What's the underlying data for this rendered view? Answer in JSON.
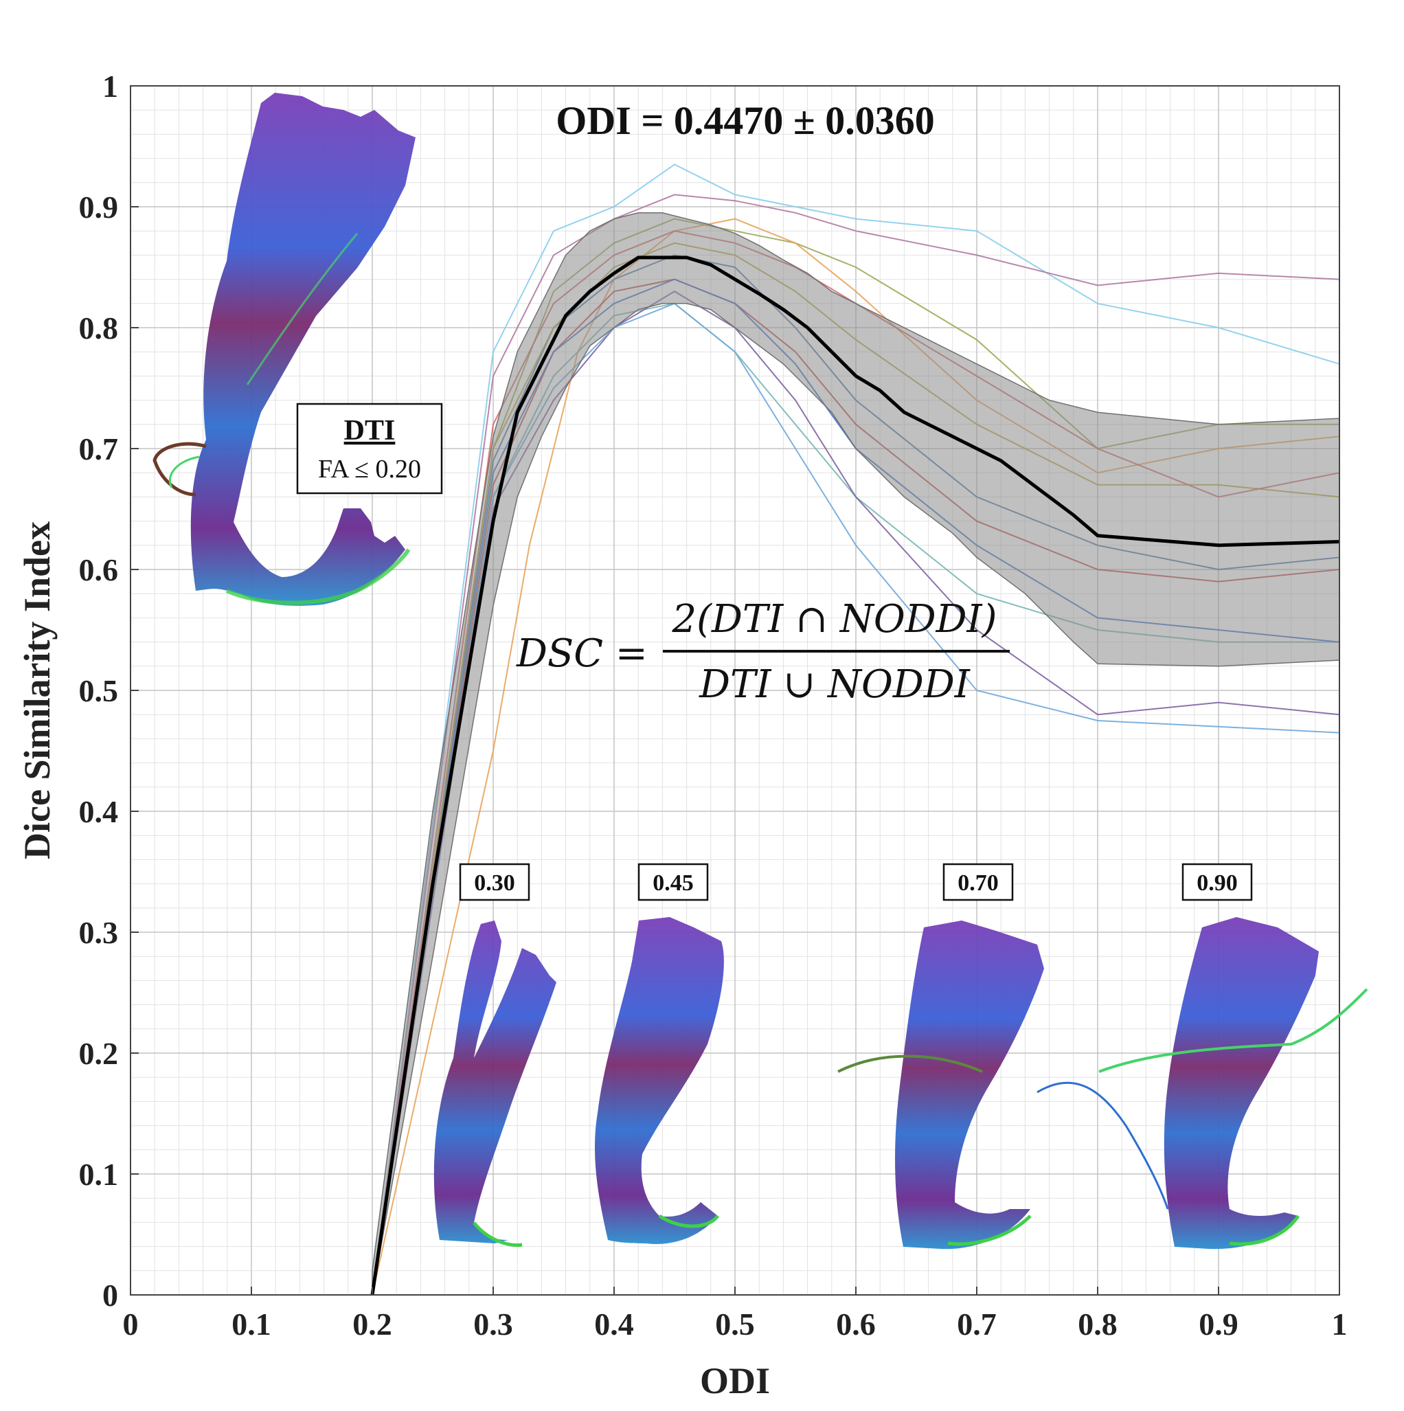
{
  "chart_data": {
    "type": "line",
    "title": "ODI = 0.4470 ± 0.0360",
    "xlabel": "ODI",
    "ylabel": "Dice Similarity Index",
    "xlim": [
      0,
      1
    ],
    "ylim": [
      0,
      1
    ],
    "xticks": [
      "0",
      "0.1",
      "0.2",
      "0.3",
      "0.4",
      "0.5",
      "0.6",
      "0.7",
      "0.8",
      "0.9",
      "1"
    ],
    "yticks": [
      "0",
      "0.1",
      "0.2",
      "0.3",
      "0.4",
      "0.5",
      "0.6",
      "0.7",
      "0.8",
      "0.9",
      "1"
    ],
    "grid": true,
    "mean_series": {
      "name": "mean",
      "color": "#000000",
      "x": [
        0.2,
        0.25,
        0.3,
        0.32,
        0.34,
        0.36,
        0.38,
        0.4,
        0.42,
        0.44,
        0.46,
        0.48,
        0.5,
        0.52,
        0.54,
        0.56,
        0.58,
        0.6,
        0.62,
        0.64,
        0.66,
        0.68,
        0.7,
        0.72,
        0.74,
        0.76,
        0.78,
        0.8,
        0.9,
        1.0
      ],
      "y": [
        0.0,
        0.34,
        0.64,
        0.73,
        0.77,
        0.81,
        0.83,
        0.845,
        0.858,
        0.858,
        0.858,
        0.852,
        0.84,
        0.828,
        0.815,
        0.8,
        0.78,
        0.76,
        0.748,
        0.73,
        0.72,
        0.71,
        0.7,
        0.69,
        0.675,
        0.66,
        0.645,
        0.628,
        0.62,
        0.623
      ]
    },
    "std_band": {
      "x": [
        0.2,
        0.25,
        0.3,
        0.32,
        0.34,
        0.36,
        0.38,
        0.4,
        0.42,
        0.44,
        0.46,
        0.48,
        0.5,
        0.52,
        0.54,
        0.56,
        0.58,
        0.6,
        0.62,
        0.64,
        0.66,
        0.68,
        0.7,
        0.72,
        0.74,
        0.76,
        0.78,
        0.8,
        0.9,
        1.0
      ],
      "upper": [
        0.02,
        0.4,
        0.71,
        0.78,
        0.82,
        0.86,
        0.88,
        0.89,
        0.895,
        0.895,
        0.89,
        0.885,
        0.878,
        0.868,
        0.856,
        0.845,
        0.83,
        0.82,
        0.81,
        0.8,
        0.79,
        0.78,
        0.77,
        0.76,
        0.75,
        0.74,
        0.735,
        0.73,
        0.72,
        0.725
      ],
      "lower": [
        0.0,
        0.28,
        0.57,
        0.66,
        0.71,
        0.75,
        0.785,
        0.8,
        0.815,
        0.82,
        0.82,
        0.815,
        0.8,
        0.785,
        0.77,
        0.75,
        0.73,
        0.7,
        0.68,
        0.66,
        0.645,
        0.63,
        0.61,
        0.595,
        0.58,
        0.56,
        0.54,
        0.522,
        0.52,
        0.525
      ]
    },
    "subject_series": [
      {
        "color": "#87ceeb",
        "x": [
          0.2,
          0.3,
          0.35,
          0.4,
          0.45,
          0.5,
          0.55,
          0.6,
          0.7,
          0.8,
          0.9,
          1.0
        ],
        "y": [
          0.0,
          0.78,
          0.88,
          0.9,
          0.935,
          0.91,
          0.9,
          0.89,
          0.88,
          0.82,
          0.8,
          0.77
        ]
      },
      {
        "color": "#b07aa1",
        "x": [
          0.2,
          0.3,
          0.35,
          0.4,
          0.45,
          0.5,
          0.55,
          0.6,
          0.7,
          0.8,
          0.9,
          1.0
        ],
        "y": [
          0.0,
          0.76,
          0.86,
          0.89,
          0.91,
          0.905,
          0.895,
          0.88,
          0.86,
          0.835,
          0.845,
          0.84
        ]
      },
      {
        "color": "#9aab55",
        "x": [
          0.2,
          0.3,
          0.35,
          0.4,
          0.45,
          0.5,
          0.55,
          0.6,
          0.7,
          0.8,
          0.9,
          1.0
        ],
        "y": [
          0.0,
          0.7,
          0.83,
          0.87,
          0.89,
          0.88,
          0.87,
          0.85,
          0.79,
          0.7,
          0.72,
          0.72
        ]
      },
      {
        "color": "#e8a35a",
        "x": [
          0.2,
          0.3,
          0.33,
          0.37,
          0.4,
          0.45,
          0.5,
          0.55,
          0.6,
          0.7,
          0.8,
          0.9,
          1.0
        ],
        "y": [
          0.0,
          0.45,
          0.62,
          0.78,
          0.84,
          0.88,
          0.89,
          0.87,
          0.83,
          0.74,
          0.68,
          0.7,
          0.71
        ]
      },
      {
        "color": "#4e79a7",
        "x": [
          0.2,
          0.3,
          0.35,
          0.4,
          0.45,
          0.5,
          0.55,
          0.6,
          0.7,
          0.8,
          0.9,
          1.0
        ],
        "y": [
          0.0,
          0.69,
          0.8,
          0.84,
          0.86,
          0.85,
          0.8,
          0.74,
          0.66,
          0.62,
          0.6,
          0.61
        ]
      },
      {
        "color": "#c0504d",
        "x": [
          0.2,
          0.3,
          0.35,
          0.4,
          0.45,
          0.5,
          0.55,
          0.6,
          0.7,
          0.8,
          0.9,
          1.0
        ],
        "y": [
          0.0,
          0.67,
          0.78,
          0.83,
          0.84,
          0.82,
          0.78,
          0.72,
          0.64,
          0.6,
          0.59,
          0.6
        ]
      },
      {
        "color": "#76b7b2",
        "x": [
          0.2,
          0.3,
          0.35,
          0.4,
          0.45,
          0.5,
          0.55,
          0.6,
          0.7,
          0.8,
          0.9,
          1.0
        ],
        "y": [
          0.0,
          0.66,
          0.76,
          0.81,
          0.82,
          0.78,
          0.72,
          0.66,
          0.58,
          0.55,
          0.54,
          0.54
        ]
      },
      {
        "color": "#8064a2",
        "x": [
          0.2,
          0.3,
          0.35,
          0.4,
          0.45,
          0.5,
          0.55,
          0.6,
          0.7,
          0.8,
          0.9,
          1.0
        ],
        "y": [
          0.0,
          0.65,
          0.74,
          0.8,
          0.83,
          0.8,
          0.74,
          0.66,
          0.55,
          0.48,
          0.49,
          0.48
        ]
      },
      {
        "color": "#6fa8dc",
        "x": [
          0.2,
          0.3,
          0.35,
          0.4,
          0.45,
          0.5,
          0.55,
          0.6,
          0.7,
          0.8,
          0.9,
          1.0
        ],
        "y": [
          0.0,
          0.66,
          0.75,
          0.8,
          0.82,
          0.78,
          0.7,
          0.62,
          0.5,
          0.475,
          0.47,
          0.465
        ]
      },
      {
        "color": "#4472c4",
        "x": [
          0.2,
          0.3,
          0.35,
          0.4,
          0.45,
          0.5,
          0.55,
          0.6,
          0.7,
          0.8,
          0.9,
          1.0
        ],
        "y": [
          0.0,
          0.68,
          0.78,
          0.82,
          0.84,
          0.82,
          0.77,
          0.7,
          0.62,
          0.56,
          0.55,
          0.54
        ]
      },
      {
        "color": "#b5a642",
        "x": [
          0.2,
          0.3,
          0.35,
          0.4,
          0.45,
          0.5,
          0.55,
          0.6,
          0.7,
          0.8,
          0.9,
          1.0
        ],
        "y": [
          0.0,
          0.7,
          0.8,
          0.85,
          0.87,
          0.86,
          0.83,
          0.79,
          0.72,
          0.67,
          0.67,
          0.66
        ]
      },
      {
        "color": "#d46a6a",
        "x": [
          0.2,
          0.3,
          0.35,
          0.4,
          0.45,
          0.5,
          0.55,
          0.6,
          0.7,
          0.8,
          0.9,
          1.0
        ],
        "y": [
          0.0,
          0.72,
          0.82,
          0.86,
          0.88,
          0.87,
          0.85,
          0.82,
          0.76,
          0.7,
          0.66,
          0.68
        ]
      }
    ]
  },
  "annotations": {
    "legend_box": {
      "title": "DTI",
      "subtitle": "FA ≤ 0.20"
    },
    "formula": {
      "lhs": "DSC =",
      "numerator": "2(DTI ∩ NODDI)",
      "denominator": "DTI ∪ NODDI"
    },
    "odi_labels": [
      "0.30",
      "0.45",
      "0.70",
      "0.90"
    ],
    "tract_images": [
      "tractography-dti",
      "tractography-odi-030",
      "tractography-odi-045",
      "tractography-odi-070",
      "tractography-odi-090"
    ]
  }
}
